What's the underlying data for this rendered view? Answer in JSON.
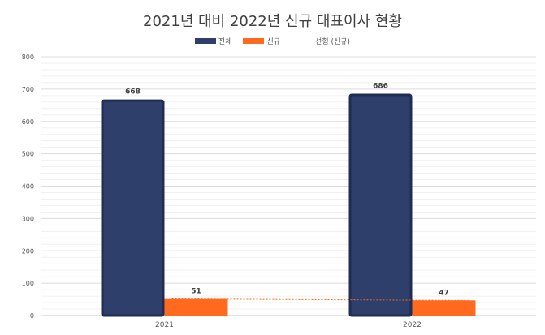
{
  "chart_data": {
    "type": "bar",
    "title": "2021년 대비 2022년 신규 대표이사 현황",
    "categories": [
      "2021",
      "2022"
    ],
    "series": [
      {
        "name": "전체",
        "values": [
          668,
          686
        ],
        "color": "#2e3f6b",
        "edge": "#1f2d55"
      },
      {
        "name": "신규",
        "values": [
          51,
          47
        ],
        "color": "#ff6a1f"
      }
    ],
    "trendline": {
      "name": "선형 (신규)",
      "of": "신규",
      "color": "#ff6a1f",
      "style": "dotted"
    },
    "ylim": [
      0,
      800
    ],
    "yticks": [
      0,
      100,
      200,
      300,
      400,
      500,
      600,
      700,
      800
    ],
    "grid": true,
    "legend_position": "top"
  }
}
